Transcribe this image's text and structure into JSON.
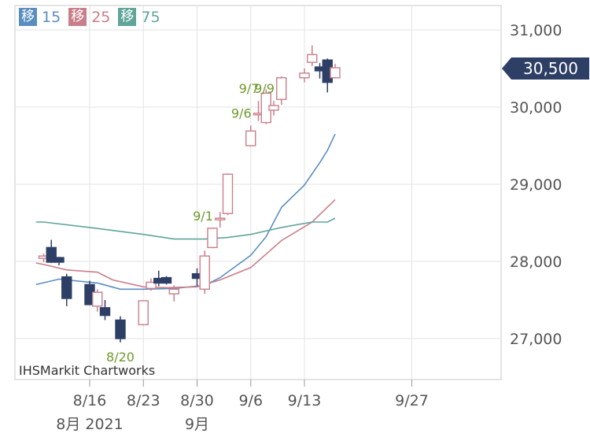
{
  "legend": [
    {
      "badge": "移",
      "period": "15",
      "color": "#5a8ec0"
    },
    {
      "badge": "移",
      "period": "25",
      "color": "#c97f8a"
    },
    {
      "badge": "移",
      "period": "75",
      "color": "#5fa59a"
    }
  ],
  "credit": "IHSMarkit Chartworks",
  "chart_data": {
    "type": "candlestick",
    "yticks": [
      {
        "value": 27000,
        "label": "27,000"
      },
      {
        "value": 28000,
        "label": "28,000"
      },
      {
        "value": 29000,
        "label": "29,000"
      },
      {
        "value": 30000,
        "label": "30,000"
      },
      {
        "value": 31000,
        "label": "31,000"
      }
    ],
    "ylim": [
      26500,
      31350
    ],
    "xticks": [
      {
        "date": "2021-08-16",
        "label": "8/16"
      },
      {
        "date": "2021-08-23",
        "label": "8/23"
      },
      {
        "date": "2021-08-30",
        "label": "8/30"
      },
      {
        "date": "2021-09-06",
        "label": "9/6"
      },
      {
        "date": "2021-09-13",
        "label": "9/13"
      },
      {
        "date": "2021-09-27",
        "label": "9/27"
      }
    ],
    "month_labels": [
      {
        "date": "2021-08-16",
        "label": "8月 2021"
      },
      {
        "date": "2021-08-30",
        "label": "9月"
      }
    ],
    "current_price": {
      "value": 30500,
      "label": "30,500"
    },
    "up_color": "#c97f8a",
    "down_color": "#2e3f66",
    "candles": [
      {
        "date": "2021-08-10",
        "open": 28040,
        "high": 28100,
        "low": 27990,
        "close": 28070
      },
      {
        "date": "2021-08-11",
        "open": 28180,
        "high": 28280,
        "low": 27980,
        "close": 27990
      },
      {
        "date": "2021-08-12",
        "open": 28050,
        "high": 28060,
        "low": 27950,
        "close": 27990
      },
      {
        "date": "2021-08-13",
        "open": 27800,
        "high": 27840,
        "low": 27420,
        "close": 27520
      },
      {
        "date": "2021-08-16",
        "open": 27700,
        "high": 27750,
        "low": 27440,
        "close": 27440
      },
      {
        "date": "2021-08-17",
        "open": 27420,
        "high": 27640,
        "low": 27350,
        "close": 27600
      },
      {
        "date": "2021-08-18",
        "open": 27400,
        "high": 27500,
        "low": 27240,
        "close": 27300
      },
      {
        "date": "2021-08-20",
        "open": 27240,
        "high": 27290,
        "low": 26950,
        "close": 27000
      },
      {
        "date": "2021-08-23",
        "open": 27180,
        "high": 27480,
        "low": 27170,
        "close": 27490
      },
      {
        "date": "2021-08-24",
        "open": 27650,
        "high": 27780,
        "low": 27620,
        "close": 27730
      },
      {
        "date": "2021-08-25",
        "open": 27780,
        "high": 27880,
        "low": 27680,
        "close": 27720
      },
      {
        "date": "2021-08-26",
        "open": 27790,
        "high": 27810,
        "low": 27700,
        "close": 27720
      },
      {
        "date": "2021-08-27",
        "open": 27580,
        "high": 27690,
        "low": 27480,
        "close": 27640
      },
      {
        "date": "2021-08-30",
        "open": 27840,
        "high": 27910,
        "low": 27680,
        "close": 27780
      },
      {
        "date": "2021-08-31",
        "open": 27640,
        "high": 28140,
        "low": 27580,
        "close": 28070
      },
      {
        "date": "2021-09-01",
        "open": 28180,
        "high": 28430,
        "low": 28170,
        "close": 28430,
        "label": "9/1"
      },
      {
        "date": "2021-09-02",
        "open": 28540,
        "high": 28640,
        "low": 28440,
        "close": 28560
      },
      {
        "date": "2021-09-03",
        "open": 28620,
        "high": 29140,
        "low": 28600,
        "close": 29130
      },
      {
        "date": "2021-09-06",
        "open": 29500,
        "high": 29760,
        "low": 29490,
        "close": 29690,
        "label": "9/6"
      },
      {
        "date": "2021-09-07",
        "open": 29900,
        "high": 30080,
        "low": 29820,
        "close": 29920,
        "label": "9/7"
      },
      {
        "date": "2021-09-08",
        "open": 29800,
        "high": 30230,
        "low": 29780,
        "close": 30180
      },
      {
        "date": "2021-09-09",
        "open": 29960,
        "high": 30080,
        "low": 29890,
        "close": 30020,
        "label": "9/9"
      },
      {
        "date": "2021-09-10",
        "open": 30100,
        "high": 30400,
        "low": 30030,
        "close": 30380
      },
      {
        "date": "2021-09-13",
        "open": 30380,
        "high": 30500,
        "low": 30320,
        "close": 30440
      },
      {
        "date": "2021-09-14",
        "open": 30580,
        "high": 30800,
        "low": 30530,
        "close": 30680
      },
      {
        "date": "2021-09-15",
        "open": 30520,
        "high": 30570,
        "low": 30370,
        "close": 30470
      },
      {
        "date": "2021-09-16",
        "open": 30610,
        "high": 30630,
        "low": 30190,
        "close": 30320
      },
      {
        "date": "2021-09-17",
        "open": 30380,
        "high": 30560,
        "low": 30370,
        "close": 30510
      }
    ],
    "annotations": [
      {
        "date": "2021-08-20",
        "label": "8/20",
        "position": "below"
      }
    ],
    "series": [
      {
        "period": "15",
        "color": "#5a8ec0",
        "points": [
          {
            "date": "2021-08-09",
            "value": 27700
          },
          {
            "date": "2021-08-12",
            "value": 27770
          },
          {
            "date": "2021-08-13",
            "value": 27760
          },
          {
            "date": "2021-08-17",
            "value": 27720
          },
          {
            "date": "2021-08-20",
            "value": 27640
          },
          {
            "date": "2021-08-23",
            "value": 27640
          },
          {
            "date": "2021-08-27",
            "value": 27650
          },
          {
            "date": "2021-08-31",
            "value": 27690
          },
          {
            "date": "2021-09-02",
            "value": 27790
          },
          {
            "date": "2021-09-06",
            "value": 28080
          },
          {
            "date": "2021-09-08",
            "value": 28320
          },
          {
            "date": "2021-09-10",
            "value": 28700
          },
          {
            "date": "2021-09-13",
            "value": 28990
          },
          {
            "date": "2021-09-15",
            "value": 29280
          },
          {
            "date": "2021-09-16",
            "value": 29440
          },
          {
            "date": "2021-09-17",
            "value": 29650
          }
        ]
      },
      {
        "period": "25",
        "color": "#c97f8a",
        "points": [
          {
            "date": "2021-08-09",
            "value": 27980
          },
          {
            "date": "2021-08-10",
            "value": 27960
          },
          {
            "date": "2021-08-13",
            "value": 27890
          },
          {
            "date": "2021-08-17",
            "value": 27860
          },
          {
            "date": "2021-08-19",
            "value": 27760
          },
          {
            "date": "2021-08-23",
            "value": 27670
          },
          {
            "date": "2021-08-26",
            "value": 27660
          },
          {
            "date": "2021-08-30",
            "value": 27670
          },
          {
            "date": "2021-09-02",
            "value": 27760
          },
          {
            "date": "2021-09-06",
            "value": 27920
          },
          {
            "date": "2021-09-10",
            "value": 28270
          },
          {
            "date": "2021-09-14",
            "value": 28510
          },
          {
            "date": "2021-09-17",
            "value": 28800
          }
        ]
      },
      {
        "period": "75",
        "color": "#5fa59a",
        "points": [
          {
            "date": "2021-08-09",
            "value": 28510
          },
          {
            "date": "2021-08-10",
            "value": 28510
          },
          {
            "date": "2021-08-16",
            "value": 28440
          },
          {
            "date": "2021-08-23",
            "value": 28350
          },
          {
            "date": "2021-08-27",
            "value": 28290
          },
          {
            "date": "2021-08-31",
            "value": 28290
          },
          {
            "date": "2021-09-03",
            "value": 28310
          },
          {
            "date": "2021-09-06",
            "value": 28350
          },
          {
            "date": "2021-09-10",
            "value": 28440
          },
          {
            "date": "2021-09-14",
            "value": 28510
          },
          {
            "date": "2021-09-16",
            "value": 28510
          },
          {
            "date": "2021-09-17",
            "value": 28560
          }
        ]
      }
    ]
  }
}
